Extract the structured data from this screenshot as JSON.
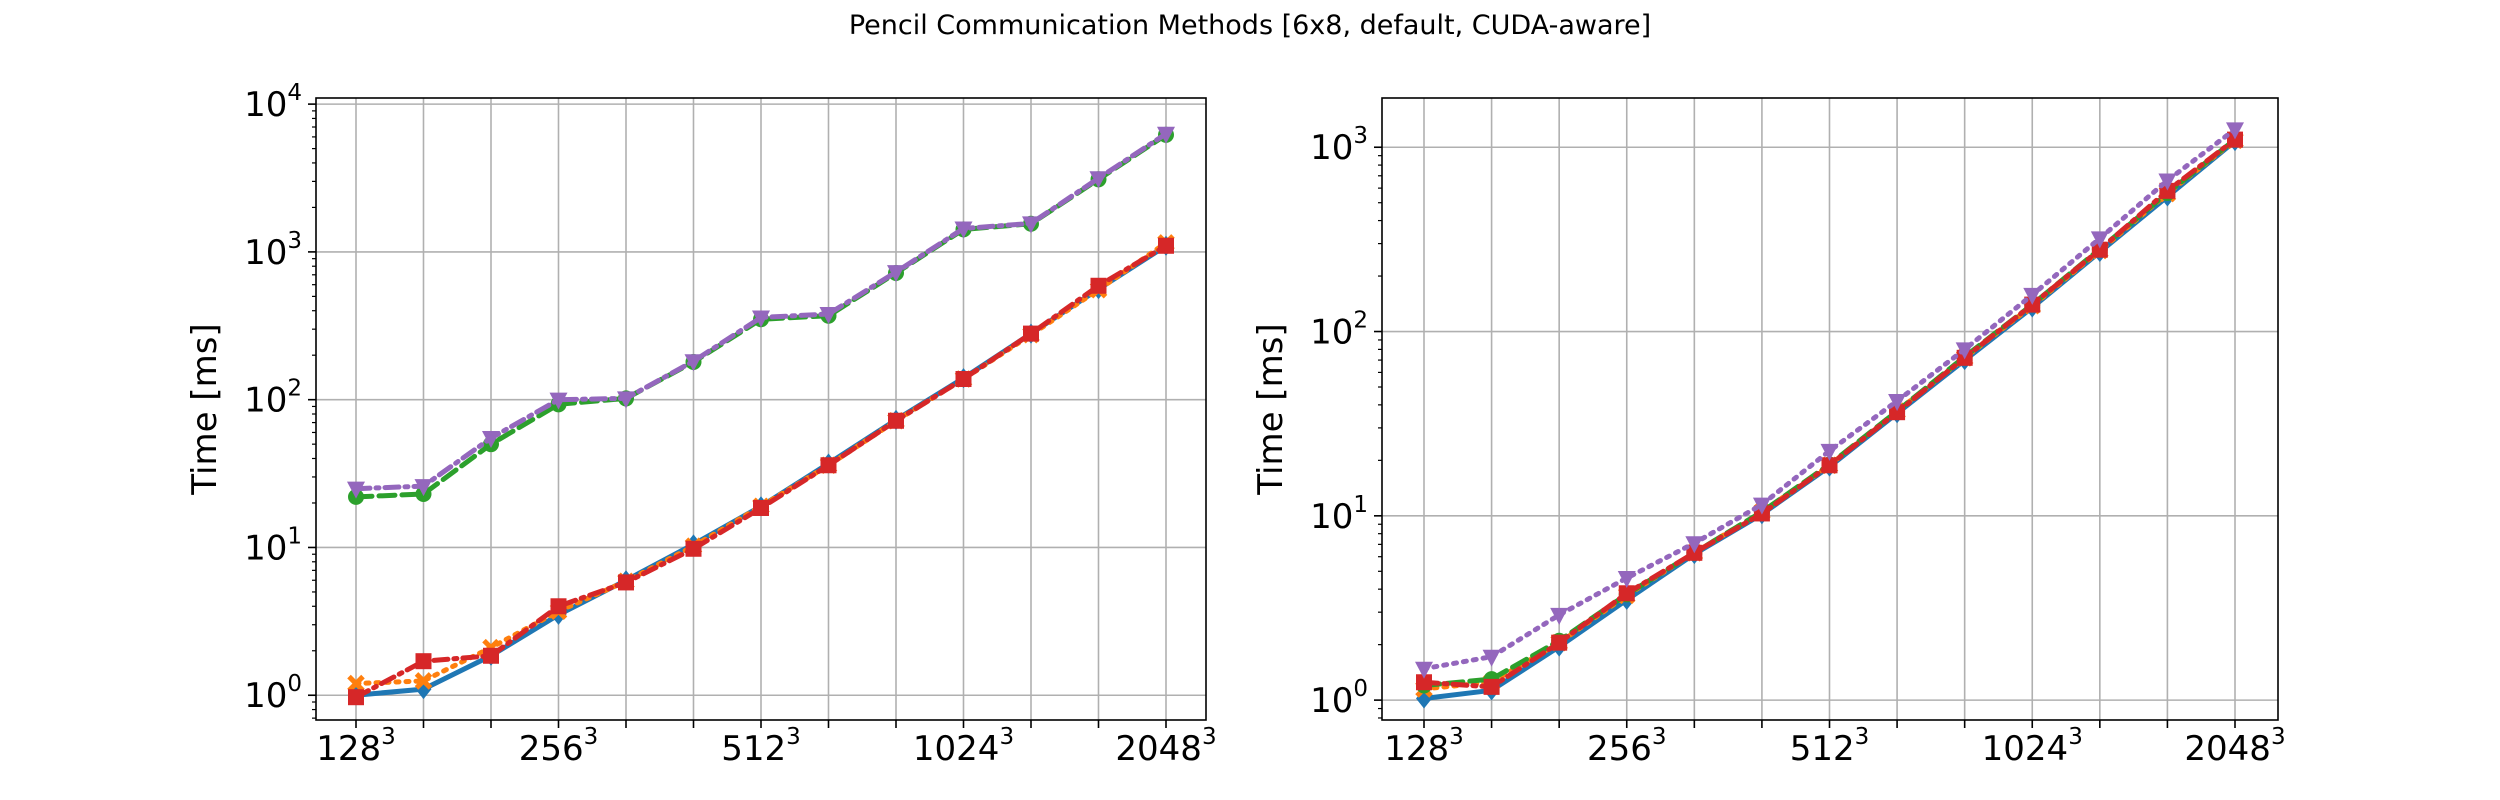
{
  "suptitle": "Pencil Communication Methods [6x8, default, CUDA-aware]",
  "colors": {
    "blue": "#1f77b4",
    "orange": "#ff7f0e",
    "green": "#2ca02c",
    "red": "#d62728",
    "purple": "#9467bd",
    "grid": "#b0b0b0"
  },
  "chart_data": [
    {
      "type": "line",
      "title": "",
      "xlabel": "",
      "ylabel": "Time [ms]",
      "yscale": "log",
      "ylim": [
        0.68,
        11000
      ],
      "yticks": [
        {
          "value": 1,
          "base": "10",
          "exp": "0"
        },
        {
          "value": 10,
          "base": "10",
          "exp": "1"
        },
        {
          "value": 100,
          "base": "10",
          "exp": "2"
        },
        {
          "value": 1000,
          "base": "10",
          "exp": "3"
        },
        {
          "value": 10000,
          "base": "10",
          "exp": "4"
        }
      ],
      "xticks_labeled": [
        {
          "index": 0,
          "base": "128",
          "exp": "3"
        },
        {
          "index": 3,
          "base": "256",
          "exp": "3"
        },
        {
          "index": 6,
          "base": "512",
          "exp": "3"
        },
        {
          "index": 9,
          "base": "1024",
          "exp": "3"
        },
        {
          "index": 12,
          "base": "2048",
          "exp": "3"
        }
      ],
      "grid": true,
      "x": [
        0,
        1,
        2,
        3,
        4,
        5,
        6,
        7,
        8,
        9,
        10,
        11,
        12
      ],
      "series": [
        {
          "color": "blue",
          "marker": "diamond",
          "linestyle": "solid",
          "values": [
            1.0,
            1.1,
            1.85,
            3.5,
            6.0,
            10.5,
            19,
            37,
            73,
            140,
            280,
            560,
            1100
          ]
        },
        {
          "color": "orange",
          "marker": "x",
          "linestyle": "dotted",
          "values": [
            1.2,
            1.25,
            2.1,
            3.7,
            5.9,
            10.2,
            19,
            36,
            72,
            138,
            275,
            555,
            1150
          ]
        },
        {
          "color": "green",
          "marker": "circle",
          "linestyle": "dashed",
          "values": [
            22,
            23,
            50,
            93,
            102,
            180,
            350,
            370,
            720,
            1420,
            1550,
            3100,
            6200
          ]
        },
        {
          "color": "red",
          "marker": "square",
          "linestyle": "dashdot",
          "values": [
            0.97,
            1.7,
            1.85,
            4.0,
            5.8,
            9.8,
            18.5,
            36,
            72,
            138,
            280,
            590,
            1100
          ]
        },
        {
          "color": "purple",
          "marker": "triangle-down",
          "linestyle": "dashdot",
          "values": [
            25,
            26,
            55,
            100,
            102,
            182,
            360,
            380,
            730,
            1440,
            1560,
            3150,
            6300
          ]
        }
      ]
    },
    {
      "type": "line",
      "title": "",
      "xlabel": "",
      "ylabel": "Time [ms]",
      "yscale": "log",
      "ylim": [
        0.78,
        1850
      ],
      "yticks": [
        {
          "value": 1,
          "base": "10",
          "exp": "0"
        },
        {
          "value": 10,
          "base": "10",
          "exp": "1"
        },
        {
          "value": 100,
          "base": "10",
          "exp": "2"
        },
        {
          "value": 1000,
          "base": "10",
          "exp": "3"
        }
      ],
      "xticks_labeled": [
        {
          "index": 0,
          "base": "128",
          "exp": "3"
        },
        {
          "index": 3,
          "base": "256",
          "exp": "3"
        },
        {
          "index": 6,
          "base": "512",
          "exp": "3"
        },
        {
          "index": 9,
          "base": "1024",
          "exp": "3"
        },
        {
          "index": 12,
          "base": "2048",
          "exp": "3"
        }
      ],
      "grid": true,
      "x": [
        0,
        1,
        2,
        3,
        4,
        5,
        6,
        7,
        8,
        9,
        10,
        11,
        12
      ],
      "series": [
        {
          "color": "blue",
          "marker": "diamond",
          "linestyle": "solid",
          "values": [
            1.02,
            1.13,
            1.95,
            3.5,
            6.2,
            10.2,
            18.5,
            36,
            70,
            135,
            270,
            540,
            1080
          ]
        },
        {
          "color": "orange",
          "marker": "x",
          "linestyle": "dotted",
          "values": [
            1.15,
            1.25,
            2.05,
            3.7,
            6.3,
            10.5,
            18.8,
            37,
            72,
            138,
            275,
            560,
            1090
          ]
        },
        {
          "color": "green",
          "marker": "circle",
          "linestyle": "dashed",
          "values": [
            1.2,
            1.3,
            2.1,
            3.75,
            6.3,
            10.5,
            19,
            37,
            73,
            140,
            280,
            565,
            1100
          ]
        },
        {
          "color": "red",
          "marker": "square",
          "linestyle": "dashdot",
          "values": [
            1.25,
            1.18,
            2.05,
            3.8,
            6.3,
            10.3,
            18.8,
            36.5,
            72,
            140,
            278,
            580,
            1100
          ]
        },
        {
          "color": "purple",
          "marker": "triangle-down",
          "linestyle": "dotted",
          "values": [
            1.48,
            1.72,
            2.9,
            4.6,
            7.1,
            11.5,
            22.5,
            42,
            80,
            158,
            320,
            660,
            1250
          ]
        }
      ]
    }
  ]
}
